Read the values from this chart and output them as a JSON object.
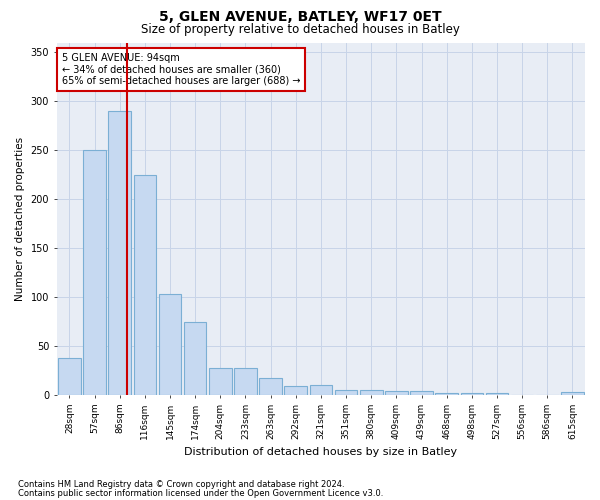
{
  "title1": "5, GLEN AVENUE, BATLEY, WF17 0ET",
  "title2": "Size of property relative to detached houses in Batley",
  "xlabel": "Distribution of detached houses by size in Batley",
  "ylabel": "Number of detached properties",
  "categories": [
    "28sqm",
    "57sqm",
    "86sqm",
    "116sqm",
    "145sqm",
    "174sqm",
    "204sqm",
    "233sqm",
    "263sqm",
    "292sqm",
    "321sqm",
    "351sqm",
    "380sqm",
    "409sqm",
    "439sqm",
    "468sqm",
    "498sqm",
    "527sqm",
    "556sqm",
    "586sqm",
    "615sqm"
  ],
  "values": [
    38,
    250,
    290,
    225,
    103,
    75,
    28,
    28,
    17,
    9,
    10,
    5,
    5,
    4,
    4,
    2,
    2,
    2,
    0,
    0,
    3
  ],
  "bar_color": "#c6d9f1",
  "bar_edge_color": "#7bafd4",
  "bar_edge_width": 0.8,
  "grid_color": "#c8d4e8",
  "bg_color": "#e8edf5",
  "vline_x": 2.3,
  "vline_color": "#cc0000",
  "annotation_line1": "5 GLEN AVENUE: 94sqm",
  "annotation_line2": "← 34% of detached houses are smaller (360)",
  "annotation_line3": "65% of semi-detached houses are larger (688) →",
  "annotation_box_color": "#cc0000",
  "ylim": [
    0,
    360
  ],
  "yticks": [
    0,
    50,
    100,
    150,
    200,
    250,
    300,
    350
  ],
  "footnote1": "Contains HM Land Registry data © Crown copyright and database right 2024.",
  "footnote2": "Contains public sector information licensed under the Open Government Licence v3.0."
}
